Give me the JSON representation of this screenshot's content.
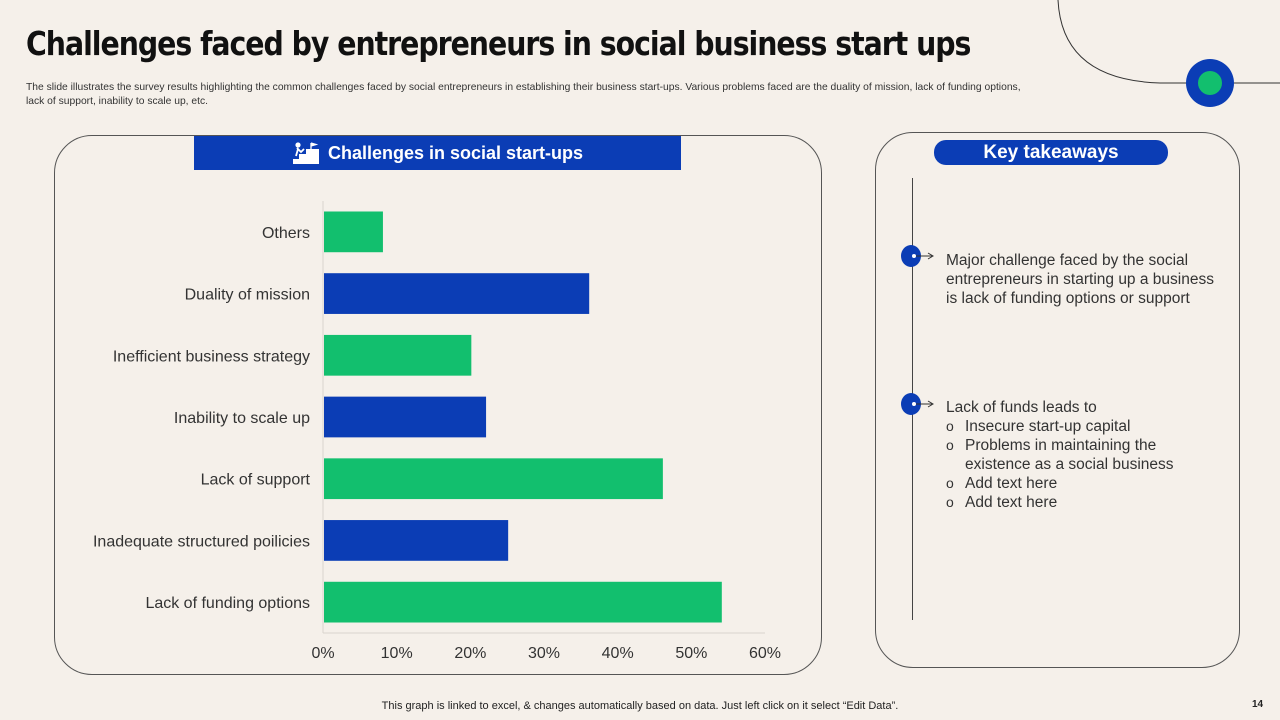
{
  "slide": {
    "title": "Challenges faced by entrepreneurs in social business start ups",
    "subtitle": "The slide illustrates the survey results highlighting the common challenges faced by social entrepreneurs in establishing their business start-ups. Various problems faced are the duality of mission, lack of funding options, lack of support, inability to scale up, etc.",
    "footer": "This graph is linked to excel, & changes automatically based on data. Just left click on it select “Edit Data”.",
    "page_number": "14"
  },
  "chart_header": {
    "title": "Challenges in social start-ups",
    "icon": "stairs-climber-icon"
  },
  "colors": {
    "blue": "#0b3db5",
    "green": "#12bf6e",
    "background": "#f5f0ea"
  },
  "chart_data": {
    "type": "bar",
    "orientation": "horizontal",
    "title": "Challenges in social start-ups",
    "categories": [
      "Others",
      "Duality of mission",
      "Inefficient business strategy",
      "Inability to scale up",
      "Lack of support",
      "Inadequate structured poilicies",
      "Lack of funding options"
    ],
    "values": [
      8,
      36,
      20,
      22,
      46,
      25,
      54
    ],
    "bar_colors": [
      "#12bf6e",
      "#0b3db5",
      "#12bf6e",
      "#0b3db5",
      "#12bf6e",
      "#0b3db5",
      "#12bf6e"
    ],
    "xlim": [
      0,
      60
    ],
    "x_ticks": [
      "0%",
      "10%",
      "20%",
      "30%",
      "40%",
      "50%",
      "60%"
    ],
    "grid": false,
    "legend": "none"
  },
  "takeaways": {
    "title": "Key takeaways",
    "point1": "Major challenge faced by the social entrepreneurs in starting up a business is lack of funding options or support",
    "point2_intro": "Lack of funds leads to",
    "point2_items": [
      {
        "bullet": "o",
        "text": "Insecure start-up capital"
      },
      {
        "bullet": "o",
        "text": "Problems in maintaining the existence as a social business"
      },
      {
        "bullet": "o",
        "text": "Add text here"
      },
      {
        "bullet": "o",
        "text": "Add text here"
      }
    ]
  }
}
